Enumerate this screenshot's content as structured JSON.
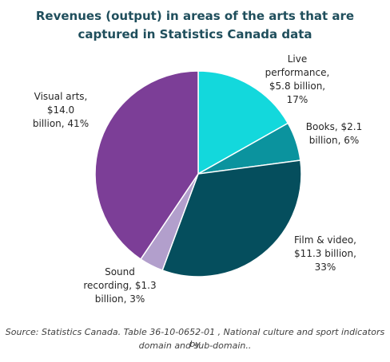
{
  "chart_data": {
    "type": "pie",
    "title_lines": [
      "Revenues (output) in areas of the arts that are",
      "captured in Statistics Canada data"
    ],
    "slices": [
      {
        "category": "Live performance",
        "value": 5.8,
        "percent": 17,
        "color": "#13d8dc",
        "label_lines": [
          "Live",
          "performance,",
          "$5.8 billion,",
          "17%"
        ]
      },
      {
        "category": "Books",
        "value": 2.1,
        "percent": 6,
        "color": "#0b939e",
        "label_lines": [
          "Books, $2.1",
          "billion, 6%"
        ]
      },
      {
        "category": "Film & video",
        "value": 11.3,
        "percent": 33,
        "color": "#054e5d",
        "label_lines": [
          "Film & video,",
          "$11.3 billion,",
          "33%"
        ]
      },
      {
        "category": "Sound recording",
        "value": 1.3,
        "percent": 3,
        "color": "#b29fcc",
        "label_lines": [
          "Sound",
          "recording, $1.3",
          "billion, 3%"
        ]
      },
      {
        "category": "Visual arts",
        "value": 14.0,
        "percent": 41,
        "color": "#7c3e97",
        "label_lines": [
          "Visual arts,",
          "$14.0",
          "billion, 41%"
        ]
      }
    ],
    "source_lines": [
      "Source: Statistics Canada. Table 36-10-0652-01  , National culture and sport indicators by",
      "domain and sub-domain.."
    ]
  }
}
